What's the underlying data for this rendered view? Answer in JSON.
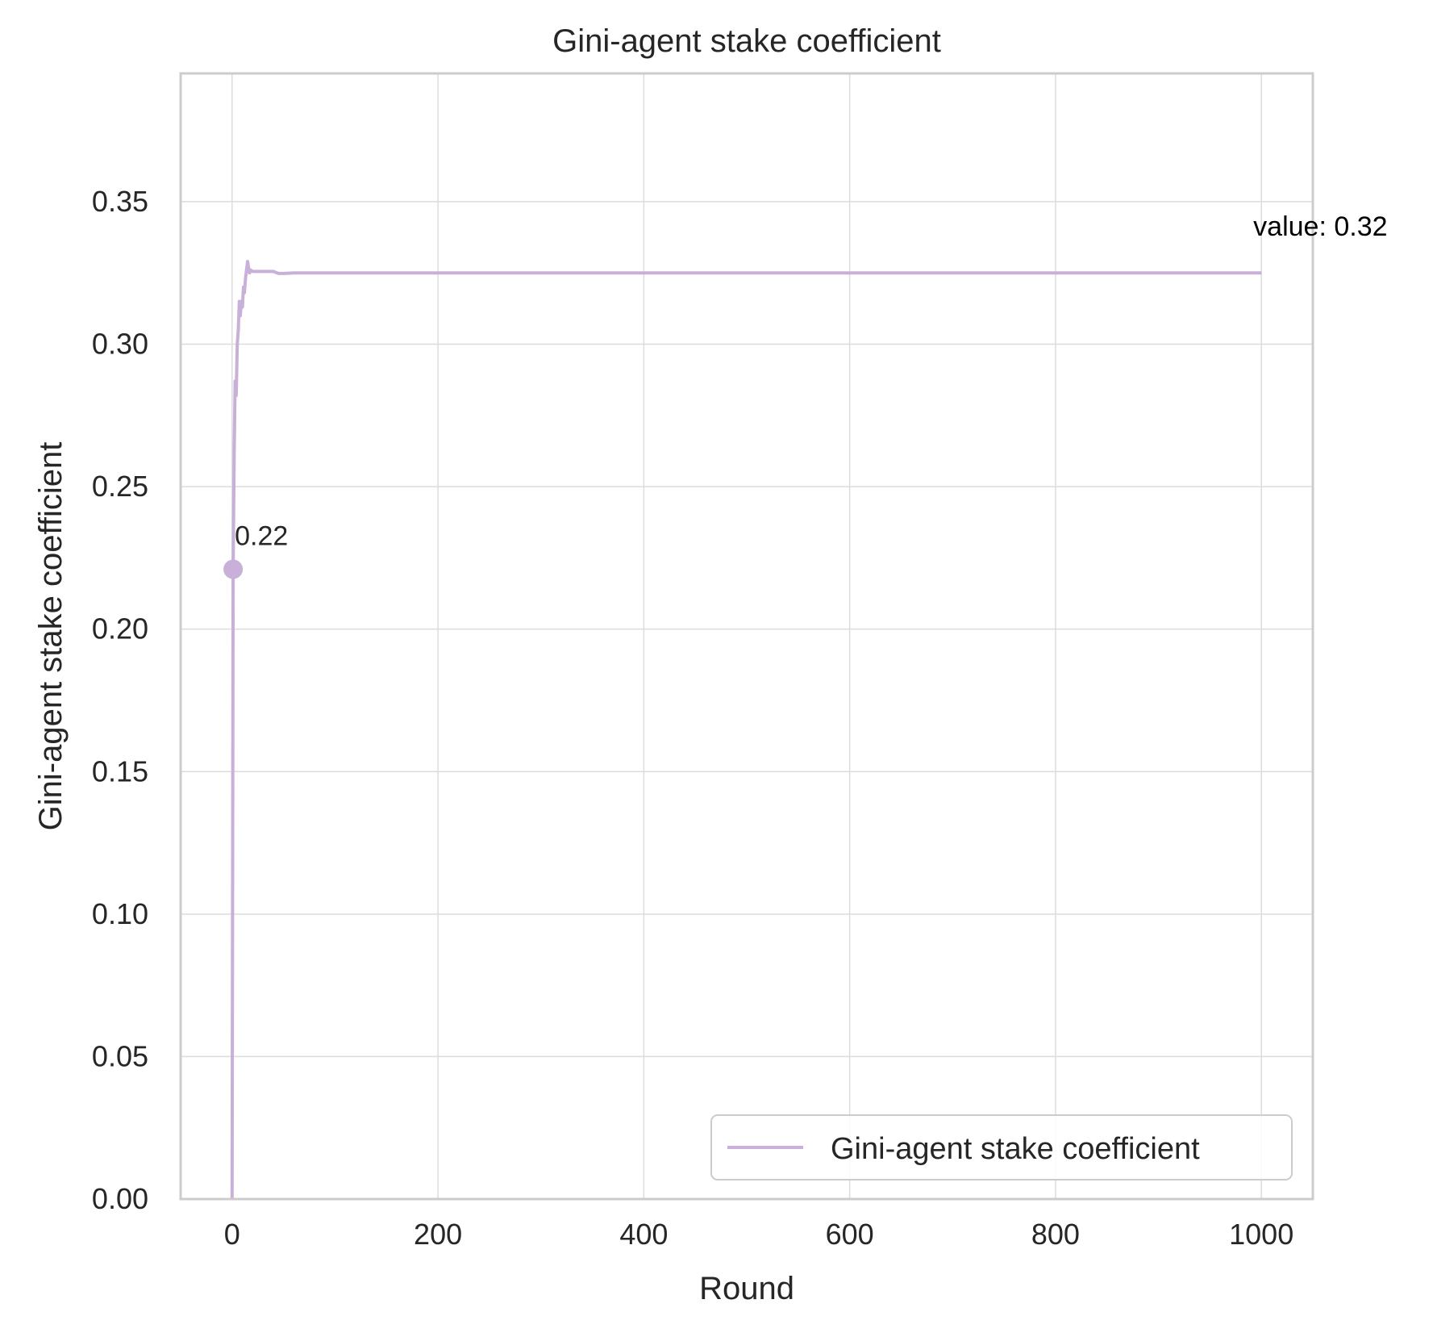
{
  "chart_data": {
    "type": "line",
    "title": "Gini-agent stake coefficient",
    "xlabel": "Round",
    "ylabel": "Gini-agent stake coefficient",
    "xlim": [
      -50,
      1050
    ],
    "ylim": [
      0,
      0.395
    ],
    "x_ticks": [
      0,
      200,
      400,
      600,
      800,
      1000
    ],
    "x_tick_labels": [
      "0",
      "200",
      "400",
      "600",
      "800",
      "1000"
    ],
    "y_ticks": [
      0,
      0.05,
      0.1,
      0.15,
      0.2,
      0.25,
      0.3,
      0.35
    ],
    "y_tick_labels": [
      "0.00",
      "0.05",
      "0.10",
      "0.15",
      "0.20",
      "0.25",
      "0.30",
      "0.35"
    ],
    "grid": true,
    "legend_position": "bottom-right",
    "colors": {
      "series": "#c8b0d8",
      "grid": "#dcdcdc",
      "spine": "#cccccc"
    },
    "series": [
      {
        "name": "Gini-agent stake coefficient",
        "x": [
          0,
          1,
          2,
          3,
          4,
          5,
          6,
          7,
          8,
          9,
          10,
          11,
          12,
          13,
          14,
          15,
          16,
          17,
          18,
          20,
          25,
          30,
          40,
          45,
          50,
          60,
          80,
          100,
          200,
          400,
          600,
          800,
          1000
        ],
        "y": [
          0.0,
          0.221,
          0.262,
          0.287,
          0.282,
          0.3,
          0.305,
          0.315,
          0.31,
          0.315,
          0.313,
          0.32,
          0.318,
          0.323,
          0.326,
          0.329,
          0.327,
          0.325,
          0.326,
          0.3255,
          0.3255,
          0.3255,
          0.3255,
          0.3248,
          0.3248,
          0.325,
          0.325,
          0.325,
          0.325,
          0.325,
          0.325,
          0.325,
          0.325
        ]
      }
    ],
    "marker": {
      "x": 1,
      "y": 0.221,
      "label": "0.22"
    },
    "end_annotation": {
      "x": 1000,
      "y": 0.325,
      "label": "value: 0.32"
    }
  }
}
